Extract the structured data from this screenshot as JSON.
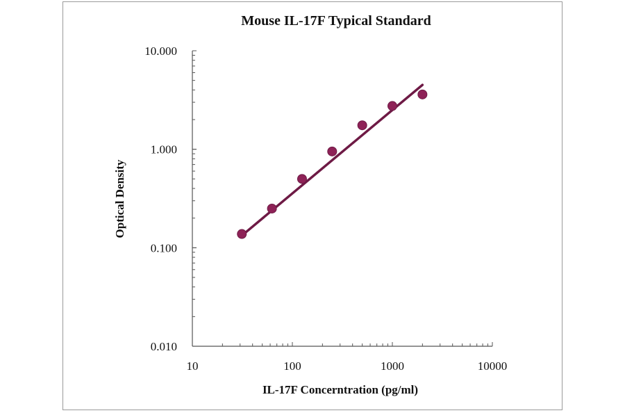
{
  "chart_data": {
    "type": "scatter",
    "title": "Mouse IL-17F Typical Standard",
    "xlabel": "IL-17F Concerntration (pg/ml)",
    "ylabel": "Optical Density",
    "xscale": "log",
    "yscale": "log",
    "xlim": [
      10,
      10000
    ],
    "ylim": [
      0.01,
      10
    ],
    "x_ticks": [
      "10",
      "100",
      "1000",
      "10000"
    ],
    "y_ticks": [
      "0.010",
      "0.100",
      "1.000",
      "10.000"
    ],
    "grid": false,
    "points": {
      "x": [
        31.25,
        62.5,
        125,
        250,
        500,
        1000,
        2000
      ],
      "y": [
        0.138,
        0.25,
        0.5,
        0.95,
        1.75,
        2.75,
        3.6
      ]
    },
    "fit_line": {
      "x": [
        31.25,
        2000
      ],
      "y": [
        0.133,
        4.5
      ]
    },
    "colors": {
      "points": "#8e2257",
      "line": "#6e1a45"
    }
  }
}
